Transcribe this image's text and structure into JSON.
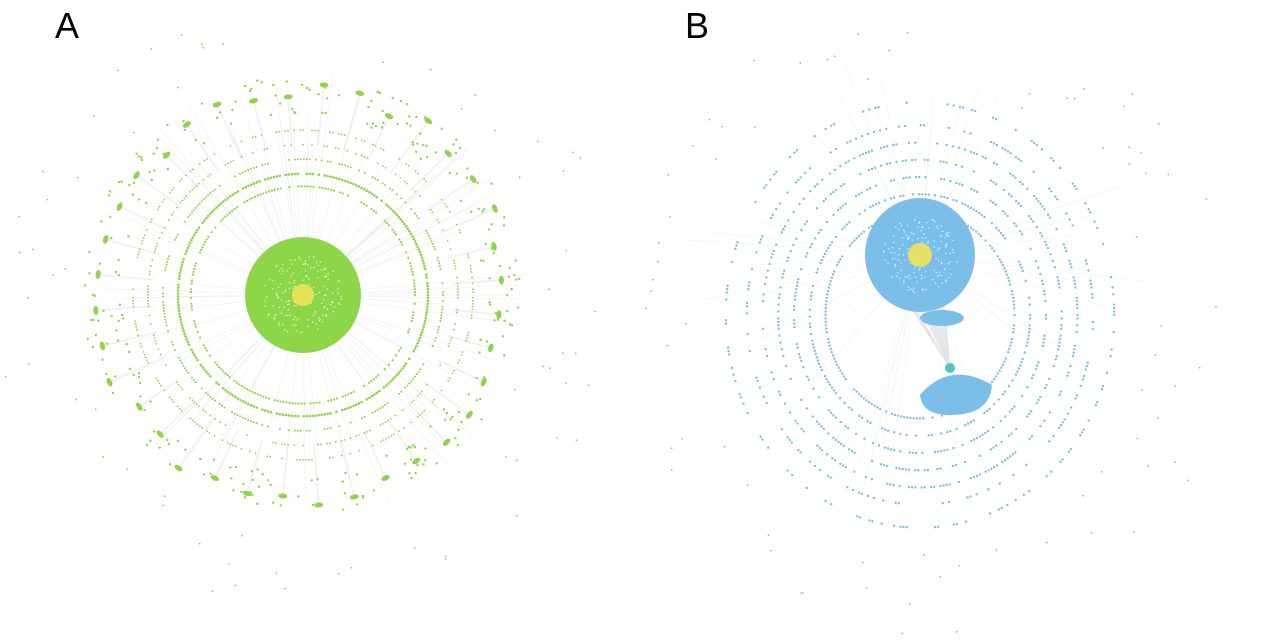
{
  "panels": [
    {
      "id": "A",
      "label": "A",
      "node_color": "#8dd64a",
      "core_color": "#efe35a",
      "edge_color": "#e4e4e4"
    },
    {
      "id": "B",
      "label": "B",
      "node_color": "#7bbfe8",
      "core_color": "#efe35a",
      "edge_color": "#e4e4e4",
      "hub_color": "#4fc7c0"
    }
  ]
}
